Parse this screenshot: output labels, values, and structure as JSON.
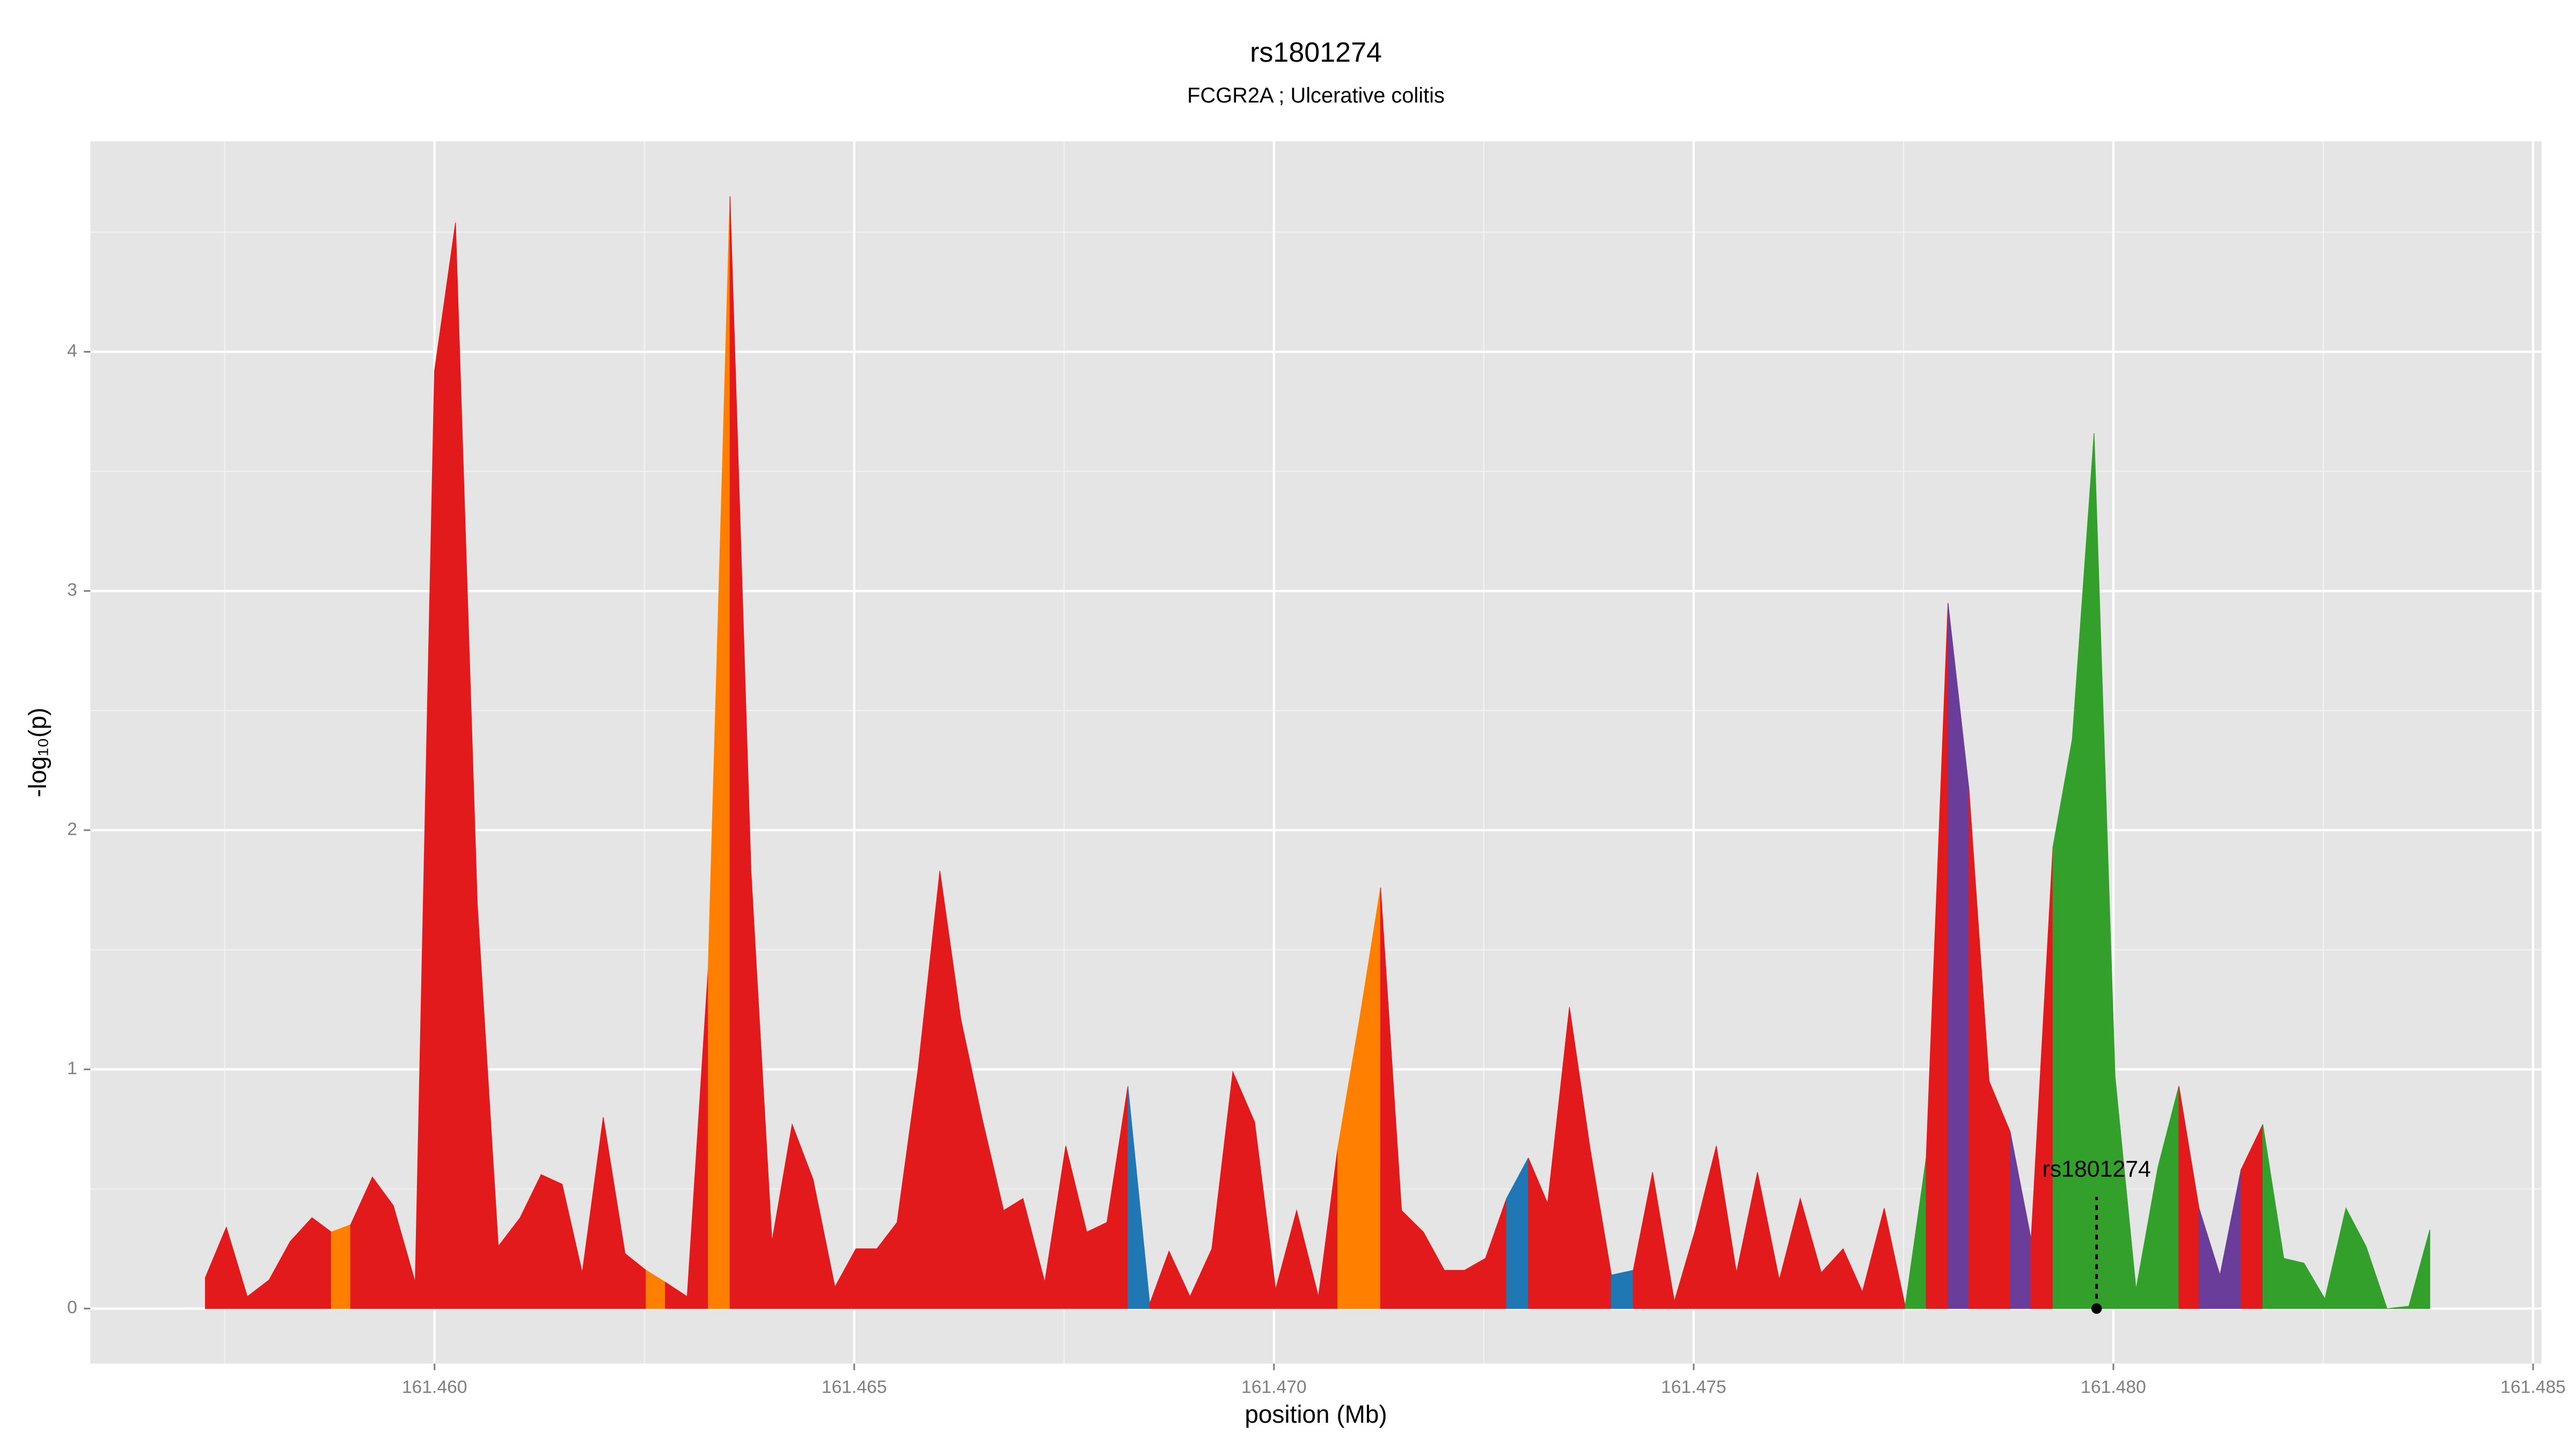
{
  "chart_data": {
    "type": "area",
    "title": "rs1801274",
    "subtitle": "FCGR2A ; Ulcerative colitis",
    "xlabel": "position (Mb)",
    "ylabel": "-log₁₀(p)",
    "xlim": [
      161.4559,
      161.4851
    ],
    "ylim": [
      -0.23,
      4.88
    ],
    "xticks": [
      {
        "value": 161.46,
        "label": "161.460"
      },
      {
        "value": 161.465,
        "label": "161.465"
      },
      {
        "value": 161.47,
        "label": "161.470"
      },
      {
        "value": 161.475,
        "label": "161.475"
      },
      {
        "value": 161.48,
        "label": "161.480"
      },
      {
        "value": 161.485,
        "label": "161.485"
      }
    ],
    "yticks": [
      0,
      1,
      2,
      3,
      4
    ],
    "grid": true,
    "marker": {
      "label": "rs1801274",
      "x": 161.4798,
      "y": 0
    },
    "series": [
      {
        "color": "#e31a1c",
        "x": [
          161.45727,
          161.45752,
          161.45777,
          161.45803,
          161.45828,
          161.45854,
          161.45877
        ],
        "values": [
          0.13,
          0.34,
          0.05,
          0.12,
          0.28,
          0.38,
          0.32
        ]
      },
      {
        "color": "#ff7f00",
        "x": [
          161.45877,
          161.459
        ],
        "values": [
          0.32,
          0.35
        ]
      },
      {
        "color": "#e31a1c",
        "x": [
          161.459,
          161.45926,
          161.45951,
          161.45977,
          161.46,
          161.46025,
          161.46051,
          161.46076,
          161.46102,
          161.46127,
          161.46152,
          161.46176,
          161.46201,
          161.46227,
          161.46252
        ],
        "values": [
          0.35,
          0.55,
          0.43,
          0.11,
          3.92,
          4.54,
          1.69,
          0.26,
          0.38,
          0.56,
          0.52,
          0.15,
          0.8,
          0.23,
          0.16
        ]
      },
      {
        "color": "#ff7f00",
        "x": [
          161.46252,
          161.46275
        ],
        "values": [
          0.16,
          0.11
        ]
      },
      {
        "color": "#e31a1c",
        "x": [
          161.46275,
          161.46301,
          161.46326
        ],
        "values": [
          0.11,
          0.05,
          1.42
        ]
      },
      {
        "color": "#ff7f00",
        "x": [
          161.46326,
          161.46352
        ],
        "values": [
          1.42,
          4.65
        ]
      },
      {
        "color": "#e31a1c",
        "x": [
          161.46352,
          161.46377,
          161.46402,
          161.46426,
          161.46451,
          161.46477,
          161.46502,
          161.46527,
          161.46551,
          161.46576,
          161.46602,
          161.46627,
          161.46652,
          161.46678,
          161.46701,
          161.46727,
          161.46752,
          161.46777,
          161.46801,
          161.46826
        ],
        "values": [
          4.65,
          1.83,
          0.28,
          0.77,
          0.54,
          0.09,
          0.25,
          0.25,
          0.36,
          1.0,
          1.83,
          1.21,
          0.8,
          0.41,
          0.46,
          0.11,
          0.68,
          0.32,
          0.36,
          0.93
        ]
      },
      {
        "color": "#1f78b4",
        "x": [
          161.46826,
          161.46852
        ],
        "values": [
          0.93,
          0.02
        ]
      },
      {
        "color": "#e31a1c",
        "x": [
          161.46852,
          161.46875,
          161.469,
          161.46926,
          161.46951,
          161.46977,
          161.47002,
          161.47027,
          161.47053,
          161.47076
        ],
        "values": [
          0.02,
          0.24,
          0.05,
          0.25,
          0.99,
          0.78,
          0.08,
          0.41,
          0.05,
          0.67
        ]
      },
      {
        "color": "#ff7f00",
        "x": [
          161.47076,
          161.47102,
          161.47127
        ],
        "values": [
          0.67,
          1.21,
          1.76
        ]
      },
      {
        "color": "#e31a1c",
        "x": [
          161.47127,
          161.47152,
          161.47178,
          161.47203,
          161.47227,
          161.47252,
          161.47277
        ],
        "values": [
          1.76,
          0.41,
          0.32,
          0.16,
          0.16,
          0.21,
          0.46
        ]
      },
      {
        "color": "#1f78b4",
        "x": [
          161.47277,
          161.47303
        ],
        "values": [
          0.46,
          0.63
        ]
      },
      {
        "color": "#e31a1c",
        "x": [
          161.47303,
          161.47326,
          161.47352,
          161.47377,
          161.47402
        ],
        "values": [
          0.63,
          0.44,
          1.26,
          0.66,
          0.14
        ]
      },
      {
        "color": "#1f78b4",
        "x": [
          161.47402,
          161.47428
        ],
        "values": [
          0.14,
          0.16
        ]
      },
      {
        "color": "#e31a1c",
        "x": [
          161.47428,
          161.47451,
          161.47477,
          161.47502,
          161.47527,
          161.47551,
          161.47576,
          161.47602,
          161.47627,
          161.47652,
          161.47678,
          161.47701,
          161.47727,
          161.47752
        ],
        "values": [
          0.16,
          0.57,
          0.03,
          0.33,
          0.68,
          0.15,
          0.57,
          0.12,
          0.46,
          0.15,
          0.25,
          0.07,
          0.42,
          0.01
        ]
      },
      {
        "color": "#33a02c",
        "x": [
          161.47752,
          161.47777
        ],
        "values": [
          0.01,
          0.63
        ]
      },
      {
        "color": "#e31a1c",
        "x": [
          161.47777,
          161.47803
        ],
        "values": [
          0.63,
          2.95
        ]
      },
      {
        "color": "#6a3d9a",
        "x": [
          161.47803,
          161.47828
        ],
        "values": [
          2.95,
          2.17
        ]
      },
      {
        "color": "#e31a1c",
        "x": [
          161.47828,
          161.47852,
          161.47877
        ],
        "values": [
          2.17,
          0.95,
          0.74
        ]
      },
      {
        "color": "#6a3d9a",
        "x": [
          161.47877,
          161.47902
        ],
        "values": [
          0.74,
          0.29
        ]
      },
      {
        "color": "#e31a1c",
        "x": [
          161.47902,
          161.47928
        ],
        "values": [
          0.29,
          1.93
        ]
      },
      {
        "color": "#33a02c",
        "x": [
          161.47928,
          161.47951,
          161.47977,
          161.48002,
          161.48027,
          161.48053,
          161.48078
        ],
        "values": [
          1.93,
          2.38,
          3.66,
          0.97,
          0.08,
          0.59,
          0.93
        ]
      },
      {
        "color": "#e31a1c",
        "x": [
          161.48078,
          161.48102
        ],
        "values": [
          0.93,
          0.42
        ]
      },
      {
        "color": "#6a3d9a",
        "x": [
          161.48102,
          161.48127,
          161.48152
        ],
        "values": [
          0.42,
          0.14,
          0.58
        ]
      },
      {
        "color": "#e31a1c",
        "x": [
          161.48152,
          161.48178
        ],
        "values": [
          0.58,
          0.77
        ]
      },
      {
        "color": "#33a02c",
        "x": [
          161.48178,
          161.48203,
          161.48227,
          161.48252,
          161.48277,
          161.48301,
          161.48326,
          161.48352,
          161.48377
        ],
        "values": [
          0.77,
          0.21,
          0.19,
          0.04,
          0.42,
          0.26,
          0,
          0.01,
          0.33
        ]
      }
    ]
  }
}
